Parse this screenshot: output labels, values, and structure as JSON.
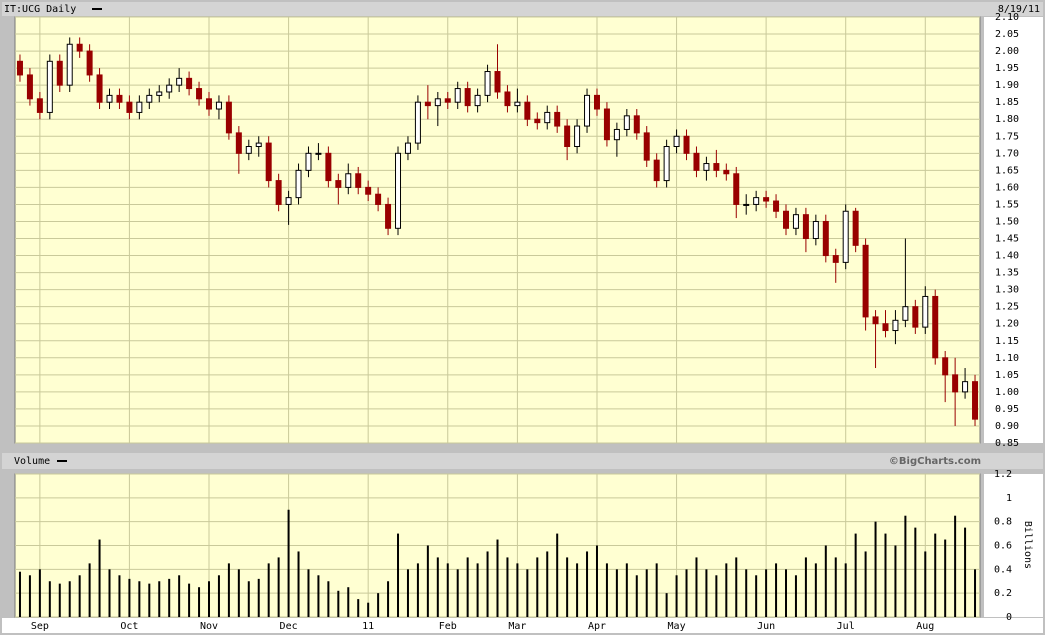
{
  "chart_data": [
    {
      "type": "candlestick",
      "title": "IT:UCG Daily",
      "date": "8/19/11",
      "up_color": "#000000",
      "down_color": "#990000",
      "grid": true,
      "ylim": [
        0.85,
        2.1
      ],
      "yticks": [
        0.85,
        {
          "value": 0.9,
          "label": "0.90"
        },
        0.95,
        {
          "value": 1,
          "label": "1.00"
        },
        1.05,
        {
          "value": 1.1,
          "label": "1.10"
        },
        1.15,
        {
          "value": 1.2,
          "label": "1.20"
        },
        1.25,
        {
          "value": 1.3,
          "label": "1.30"
        },
        1.35,
        {
          "value": 1.4,
          "label": "1.40"
        },
        1.45,
        {
          "value": 1.5,
          "label": "1.50"
        },
        1.55,
        {
          "value": 1.6,
          "label": "1.60"
        },
        1.65,
        {
          "value": 1.7,
          "label": "1.70"
        },
        1.75,
        {
          "value": 1.8,
          "label": "1.80"
        },
        1.85,
        {
          "value": 1.9,
          "label": "1.90"
        },
        1.95,
        {
          "value": 2,
          "label": "2.00"
        },
        2.05,
        {
          "value": 2.1,
          "label": "2.10"
        }
      ],
      "open": [
        1.97,
        1.93,
        1.86,
        1.82,
        1.97,
        1.9,
        2.02,
        2.0,
        1.93,
        1.85,
        1.87,
        1.85,
        1.82,
        1.85,
        1.87,
        1.88,
        1.9,
        1.92,
        1.89,
        1.86,
        1.83,
        1.85,
        1.76,
        1.7,
        1.72,
        1.73,
        1.62,
        1.55,
        1.57,
        1.65,
        1.7,
        1.7,
        1.62,
        1.6,
        1.64,
        1.6,
        1.58,
        1.55,
        1.48,
        1.7,
        1.73,
        1.85,
        1.84,
        1.86,
        1.85,
        1.89,
        1.84,
        1.87,
        1.94,
        1.88,
        1.84,
        1.85,
        1.8,
        1.79,
        1.82,
        1.78,
        1.72,
        1.78,
        1.87,
        1.83,
        1.74,
        1.77,
        1.81,
        1.76,
        1.68,
        1.62,
        1.72,
        1.75,
        1.7,
        1.65,
        1.67,
        1.65,
        1.64,
        1.55,
        1.55,
        1.57,
        1.56,
        1.53,
        1.48,
        1.52,
        1.45,
        1.5,
        1.4,
        1.38,
        1.53,
        1.43,
        1.22,
        1.2,
        1.18,
        1.21,
        1.25,
        1.19,
        1.28,
        1.1,
        1.05,
        1.0,
        1.03
      ],
      "high": [
        1.99,
        1.95,
        1.88,
        1.99,
        1.99,
        2.04,
        2.04,
        2.02,
        1.95,
        1.89,
        1.89,
        1.87,
        1.87,
        1.89,
        1.9,
        1.92,
        1.95,
        1.94,
        1.91,
        1.88,
        1.87,
        1.87,
        1.78,
        1.74,
        1.75,
        1.75,
        1.64,
        1.59,
        1.67,
        1.72,
        1.73,
        1.72,
        1.64,
        1.67,
        1.66,
        1.62,
        1.6,
        1.57,
        1.72,
        1.75,
        1.87,
        1.9,
        1.88,
        1.88,
        1.91,
        1.91,
        1.89,
        1.96,
        2.02,
        1.9,
        1.89,
        1.87,
        1.82,
        1.84,
        1.84,
        1.8,
        1.8,
        1.89,
        1.89,
        1.85,
        1.79,
        1.83,
        1.83,
        1.78,
        1.7,
        1.74,
        1.77,
        1.77,
        1.72,
        1.69,
        1.71,
        1.67,
        1.66,
        1.58,
        1.59,
        1.59,
        1.58,
        1.55,
        1.54,
        1.54,
        1.52,
        1.52,
        1.42,
        1.55,
        1.54,
        1.45,
        1.24,
        1.24,
        1.24,
        1.45,
        1.27,
        1.31,
        1.3,
        1.12,
        1.1,
        1.07,
        1.05
      ],
      "low": [
        1.91,
        1.84,
        1.8,
        1.8,
        1.88,
        1.88,
        1.98,
        1.91,
        1.83,
        1.83,
        1.83,
        1.8,
        1.8,
        1.83,
        1.85,
        1.86,
        1.88,
        1.87,
        1.84,
        1.81,
        1.8,
        1.74,
        1.64,
        1.68,
        1.69,
        1.6,
        1.53,
        1.49,
        1.55,
        1.63,
        1.68,
        1.6,
        1.55,
        1.58,
        1.58,
        1.56,
        1.53,
        1.46,
        1.46,
        1.68,
        1.71,
        1.8,
        1.78,
        1.83,
        1.83,
        1.82,
        1.82,
        1.85,
        1.86,
        1.82,
        1.82,
        1.78,
        1.77,
        1.77,
        1.76,
        1.68,
        1.7,
        1.76,
        1.81,
        1.72,
        1.69,
        1.75,
        1.74,
        1.66,
        1.6,
        1.6,
        1.7,
        1.68,
        1.63,
        1.62,
        1.63,
        1.62,
        1.51,
        1.52,
        1.53,
        1.54,
        1.51,
        1.46,
        1.46,
        1.41,
        1.43,
        1.38,
        1.32,
        1.36,
        1.41,
        1.18,
        1.07,
        1.16,
        1.14,
        1.19,
        1.17,
        1.17,
        1.08,
        0.97,
        0.9,
        0.98,
        0.9
      ],
      "close": [
        1.93,
        1.86,
        1.82,
        1.97,
        1.9,
        2.02,
        2.0,
        1.93,
        1.85,
        1.87,
        1.85,
        1.82,
        1.85,
        1.87,
        1.88,
        1.9,
        1.92,
        1.89,
        1.86,
        1.83,
        1.85,
        1.76,
        1.7,
        1.72,
        1.73,
        1.62,
        1.55,
        1.57,
        1.65,
        1.7,
        1.7,
        1.62,
        1.6,
        1.64,
        1.6,
        1.58,
        1.55,
        1.48,
        1.7,
        1.73,
        1.85,
        1.84,
        1.86,
        1.85,
        1.89,
        1.84,
        1.87,
        1.94,
        1.88,
        1.84,
        1.85,
        1.8,
        1.79,
        1.82,
        1.78,
        1.72,
        1.78,
        1.87,
        1.83,
        1.74,
        1.77,
        1.81,
        1.76,
        1.68,
        1.62,
        1.72,
        1.75,
        1.7,
        1.65,
        1.67,
        1.65,
        1.64,
        1.55,
        1.55,
        1.57,
        1.56,
        1.53,
        1.48,
        1.52,
        1.45,
        1.5,
        1.4,
        1.38,
        1.53,
        1.43,
        1.22,
        1.2,
        1.18,
        1.21,
        1.25,
        1.19,
        1.28,
        1.1,
        1.05,
        1.0,
        1.03,
        0.92
      ]
    },
    {
      "type": "bar",
      "title": "Volume",
      "source": "©BigCharts.com",
      "y_label": "Billions",
      "color": "#000000",
      "grid": true,
      "ylim": [
        0,
        1.2
      ],
      "yticks": [
        0,
        0.2,
        0.4,
        0.6,
        0.8,
        1,
        1.2
      ],
      "categories": [
        null,
        null,
        "Sep",
        null,
        null,
        null,
        null,
        null,
        null,
        null,
        null,
        "Oct",
        null,
        null,
        null,
        null,
        null,
        null,
        null,
        "Nov",
        null,
        null,
        null,
        null,
        null,
        null,
        null,
        "Dec",
        null,
        null,
        null,
        null,
        null,
        null,
        null,
        "11",
        null,
        null,
        null,
        null,
        null,
        null,
        null,
        "Feb",
        null,
        null,
        null,
        null,
        null,
        null,
        "Mar",
        null,
        null,
        null,
        null,
        null,
        null,
        null,
        "Apr",
        null,
        null,
        null,
        null,
        null,
        null,
        null,
        "May",
        null,
        null,
        null,
        null,
        null,
        null,
        null,
        null,
        "Jun",
        null,
        null,
        null,
        null,
        null,
        null,
        null,
        "Jul",
        null,
        null,
        null,
        null,
        null,
        null,
        null,
        "Aug",
        null,
        null,
        null,
        null,
        null
      ],
      "values": [
        0.38,
        0.35,
        0.4,
        0.3,
        0.28,
        0.3,
        0.35,
        0.45,
        0.65,
        0.4,
        0.35,
        0.32,
        0.3,
        0.28,
        0.3,
        0.32,
        0.35,
        0.28,
        0.25,
        0.3,
        0.35,
        0.45,
        0.4,
        0.3,
        0.32,
        0.45,
        0.5,
        0.9,
        0.55,
        0.4,
        0.35,
        0.3,
        0.22,
        0.25,
        0.15,
        0.12,
        0.2,
        0.3,
        0.7,
        0.4,
        0.45,
        0.6,
        0.5,
        0.45,
        0.4,
        0.5,
        0.45,
        0.55,
        0.65,
        0.5,
        0.45,
        0.4,
        0.5,
        0.55,
        0.7,
        0.5,
        0.45,
        0.55,
        0.6,
        0.45,
        0.4,
        0.45,
        0.35,
        0.4,
        0.45,
        0.2,
        0.35,
        0.4,
        0.5,
        0.4,
        0.35,
        0.45,
        0.5,
        0.4,
        0.35,
        0.4,
        0.45,
        0.4,
        0.35,
        0.5,
        0.45,
        0.6,
        0.5,
        0.45,
        0.7,
        0.55,
        0.8,
        0.7,
        0.6,
        0.85,
        0.75,
        0.55,
        0.7,
        0.65,
        0.85,
        0.75,
        0.4
      ]
    }
  ]
}
